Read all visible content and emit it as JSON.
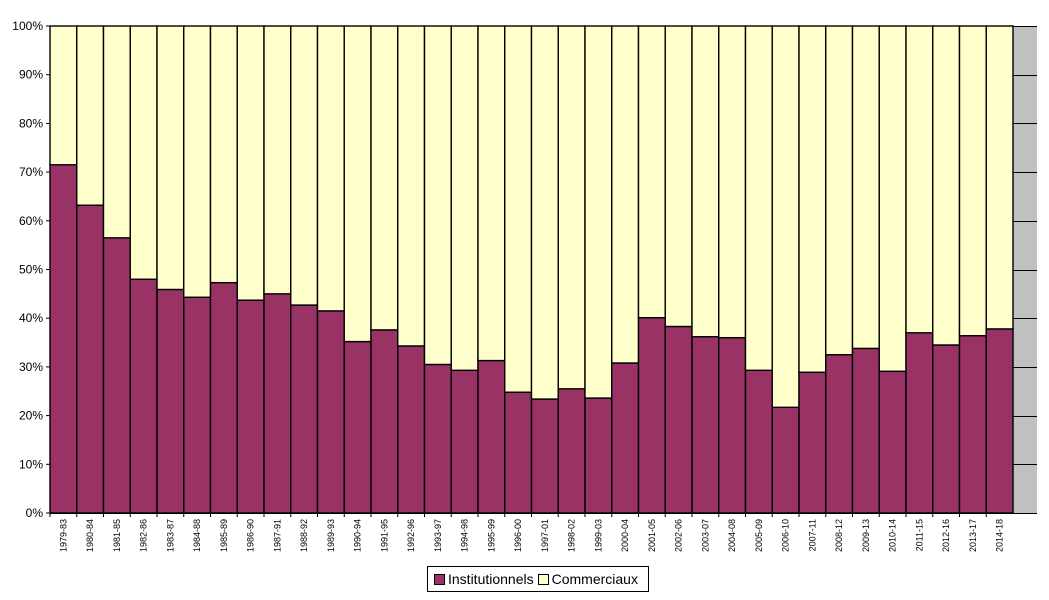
{
  "chart_data": {
    "type": "bar",
    "stacked": true,
    "percent": true,
    "categories": [
      "1979-83",
      "1980-84",
      "1981-85",
      "1982-86",
      "1983-87",
      "1984-88",
      "1985-89",
      "1986-90",
      "1987-91",
      "1988-92",
      "1989-93",
      "1990-94",
      "1991-95",
      "1992-96",
      "1993-97",
      "1994-98",
      "1995-99",
      "1996-00",
      "1997-01",
      "1998-02",
      "1999-03",
      "2000-04",
      "2001-05",
      "2002-06",
      "2003-07",
      "2004-08",
      "2005-09",
      "2006-10",
      "2007-11",
      "2008-12",
      "2009-13",
      "2010-14",
      "2011-15",
      "2012-16",
      "2013-17",
      "2014-18"
    ],
    "series": [
      {
        "name": "Institutionnels",
        "color": "#993366",
        "values": [
          71.5,
          63.2,
          56.5,
          48.0,
          45.9,
          44.3,
          47.3,
          43.7,
          45.0,
          42.7,
          41.5,
          35.2,
          37.6,
          34.3,
          30.5,
          29.3,
          31.3,
          24.8,
          23.4,
          25.5,
          23.6,
          30.8,
          40.1,
          38.3,
          36.2,
          36.0,
          29.3,
          21.7,
          28.9,
          32.5,
          33.8,
          29.1,
          37.0,
          34.5,
          36.4,
          37.8
        ]
      },
      {
        "name": "Commerciaux",
        "color": "#FFFFCC",
        "values": [
          28.5,
          36.8,
          43.5,
          52.0,
          54.1,
          55.7,
          52.7,
          56.3,
          55.0,
          57.3,
          58.5,
          64.8,
          62.4,
          65.7,
          69.5,
          70.7,
          68.7,
          75.2,
          76.6,
          74.5,
          76.4,
          69.2,
          59.9,
          61.7,
          63.8,
          64.0,
          70.7,
          78.3,
          71.1,
          67.5,
          66.2,
          70.9,
          63.0,
          65.5,
          63.6,
          62.2
        ]
      }
    ],
    "yticks": [
      "0%",
      "10%",
      "20%",
      "30%",
      "40%",
      "50%",
      "60%",
      "70%",
      "80%",
      "90%",
      "100%"
    ],
    "ylim": [
      0,
      100
    ],
    "grid": true,
    "plot_background": "#C0C0C0",
    "legend_position": "bottom"
  }
}
